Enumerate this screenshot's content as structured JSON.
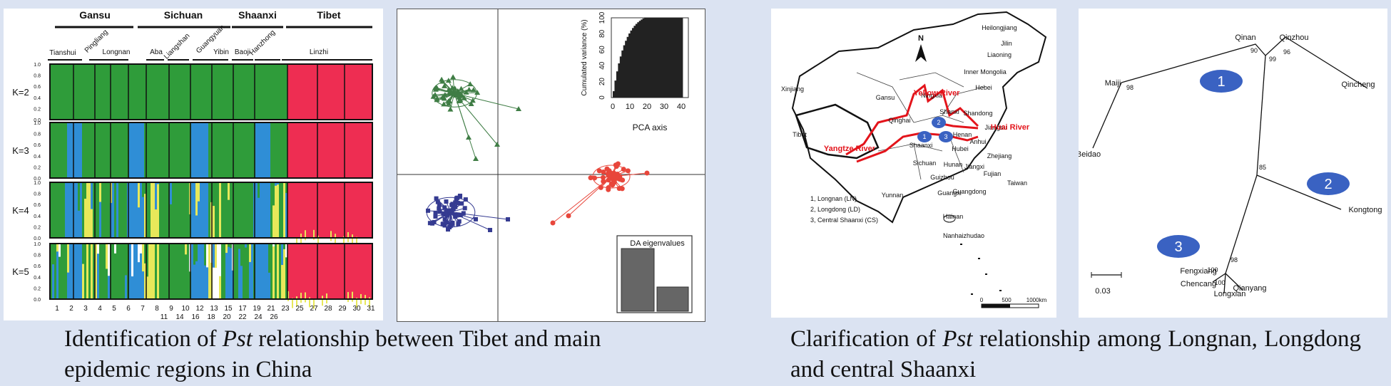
{
  "structure": {
    "regions": [
      "Gansu",
      "Sichuan",
      "Shaanxi",
      "Tibet"
    ],
    "sites": [
      "Tianshui",
      "Pingliang",
      "Longnan",
      "Aba",
      "Liangshan",
      "Guangyuan",
      "Yibin",
      "Baoji",
      "Hanzhong",
      "Linzhi"
    ],
    "k_labels": [
      "K=2",
      "K=3",
      "K=4",
      "K=5"
    ],
    "y_ticks": [
      "1.0",
      "0.8",
      "0.6",
      "0.4",
      "0.2",
      "0.0"
    ],
    "pop_row1": [
      "1",
      "2",
      "3",
      "4",
      "5",
      "6",
      "7",
      "8",
      "9",
      "10",
      "12",
      "13",
      "15",
      "17",
      "19",
      "21",
      "23",
      "25",
      "27",
      "28",
      "29",
      "30",
      "31"
    ],
    "pop_row2": [
      "11",
      "14",
      "16",
      "18",
      "20",
      "22",
      "24",
      "26"
    ],
    "colors": {
      "green": "#2f9c3a",
      "blue": "#2f8ed6",
      "yellow": "#e8e85a",
      "red": "#ee2d52"
    }
  },
  "dapc": {
    "inset_ylabel": "Cumulated variance (%)",
    "inset_xlabel": "PCA axis",
    "inset_yticks": [
      "0",
      "20",
      "40",
      "60",
      "80",
      "100"
    ],
    "inset_xticks": [
      "0",
      "10",
      "20",
      "30",
      "40"
    ],
    "da_label": "DA eigenvalues",
    "colors": {
      "green": "#3f7d45",
      "blue": "#353b91",
      "red": "#e8463b"
    }
  },
  "map": {
    "provinces": [
      "Heilongjiang",
      "Jilin",
      "Liaoning",
      "Inner Mongolia",
      "Hebei",
      "Xinjiang",
      "Gansu",
      "Ningxia",
      "Qinghai",
      "Shanxi",
      "Shandong",
      "Henan",
      "Tibet",
      "Shaanxi",
      "Jiangsu",
      "Anhui",
      "Hubei",
      "Sichuan",
      "Zhejiang",
      "Jiangxi",
      "Hunan",
      "Guizhou",
      "Fujian",
      "Yunnan",
      "Guangxi",
      "Guangdong",
      "Taiwan",
      "Hainan",
      "Nanhaizhudao"
    ],
    "rivers": [
      "Yellow River",
      "Yangtze River",
      "Huai River"
    ],
    "markers": [
      "1",
      "2",
      "3"
    ],
    "legend": [
      "1, Longnan (LN)",
      "2, Longdong (LD)",
      "3, Central Shaanxi (CS)"
    ],
    "north": "N",
    "scale_ticks": [
      "0",
      "500",
      "1000km"
    ]
  },
  "tree": {
    "taxa": [
      "Qinan",
      "Qinzhou",
      "Maiji",
      "Qincheng",
      "Beidao",
      "Kongtong",
      "Fengxiang",
      "Chencang",
      "Longxian",
      "Qianyang"
    ],
    "bootstrap": [
      "90",
      "99",
      "96",
      "98",
      "85",
      "98",
      "100",
      "100"
    ],
    "clusters": [
      "1",
      "2",
      "3"
    ],
    "scale": "0.03"
  },
  "captions": {
    "left_prefix": "Identification of",
    "left_italic": "Pst",
    "left_suffix": "relationship between Tibet and main epidemic regions in China",
    "right_prefix": "Clarification of",
    "right_italic": "Pst",
    "right_suffix": "relationship among Longnan, Longdong and central Shaanxi"
  }
}
